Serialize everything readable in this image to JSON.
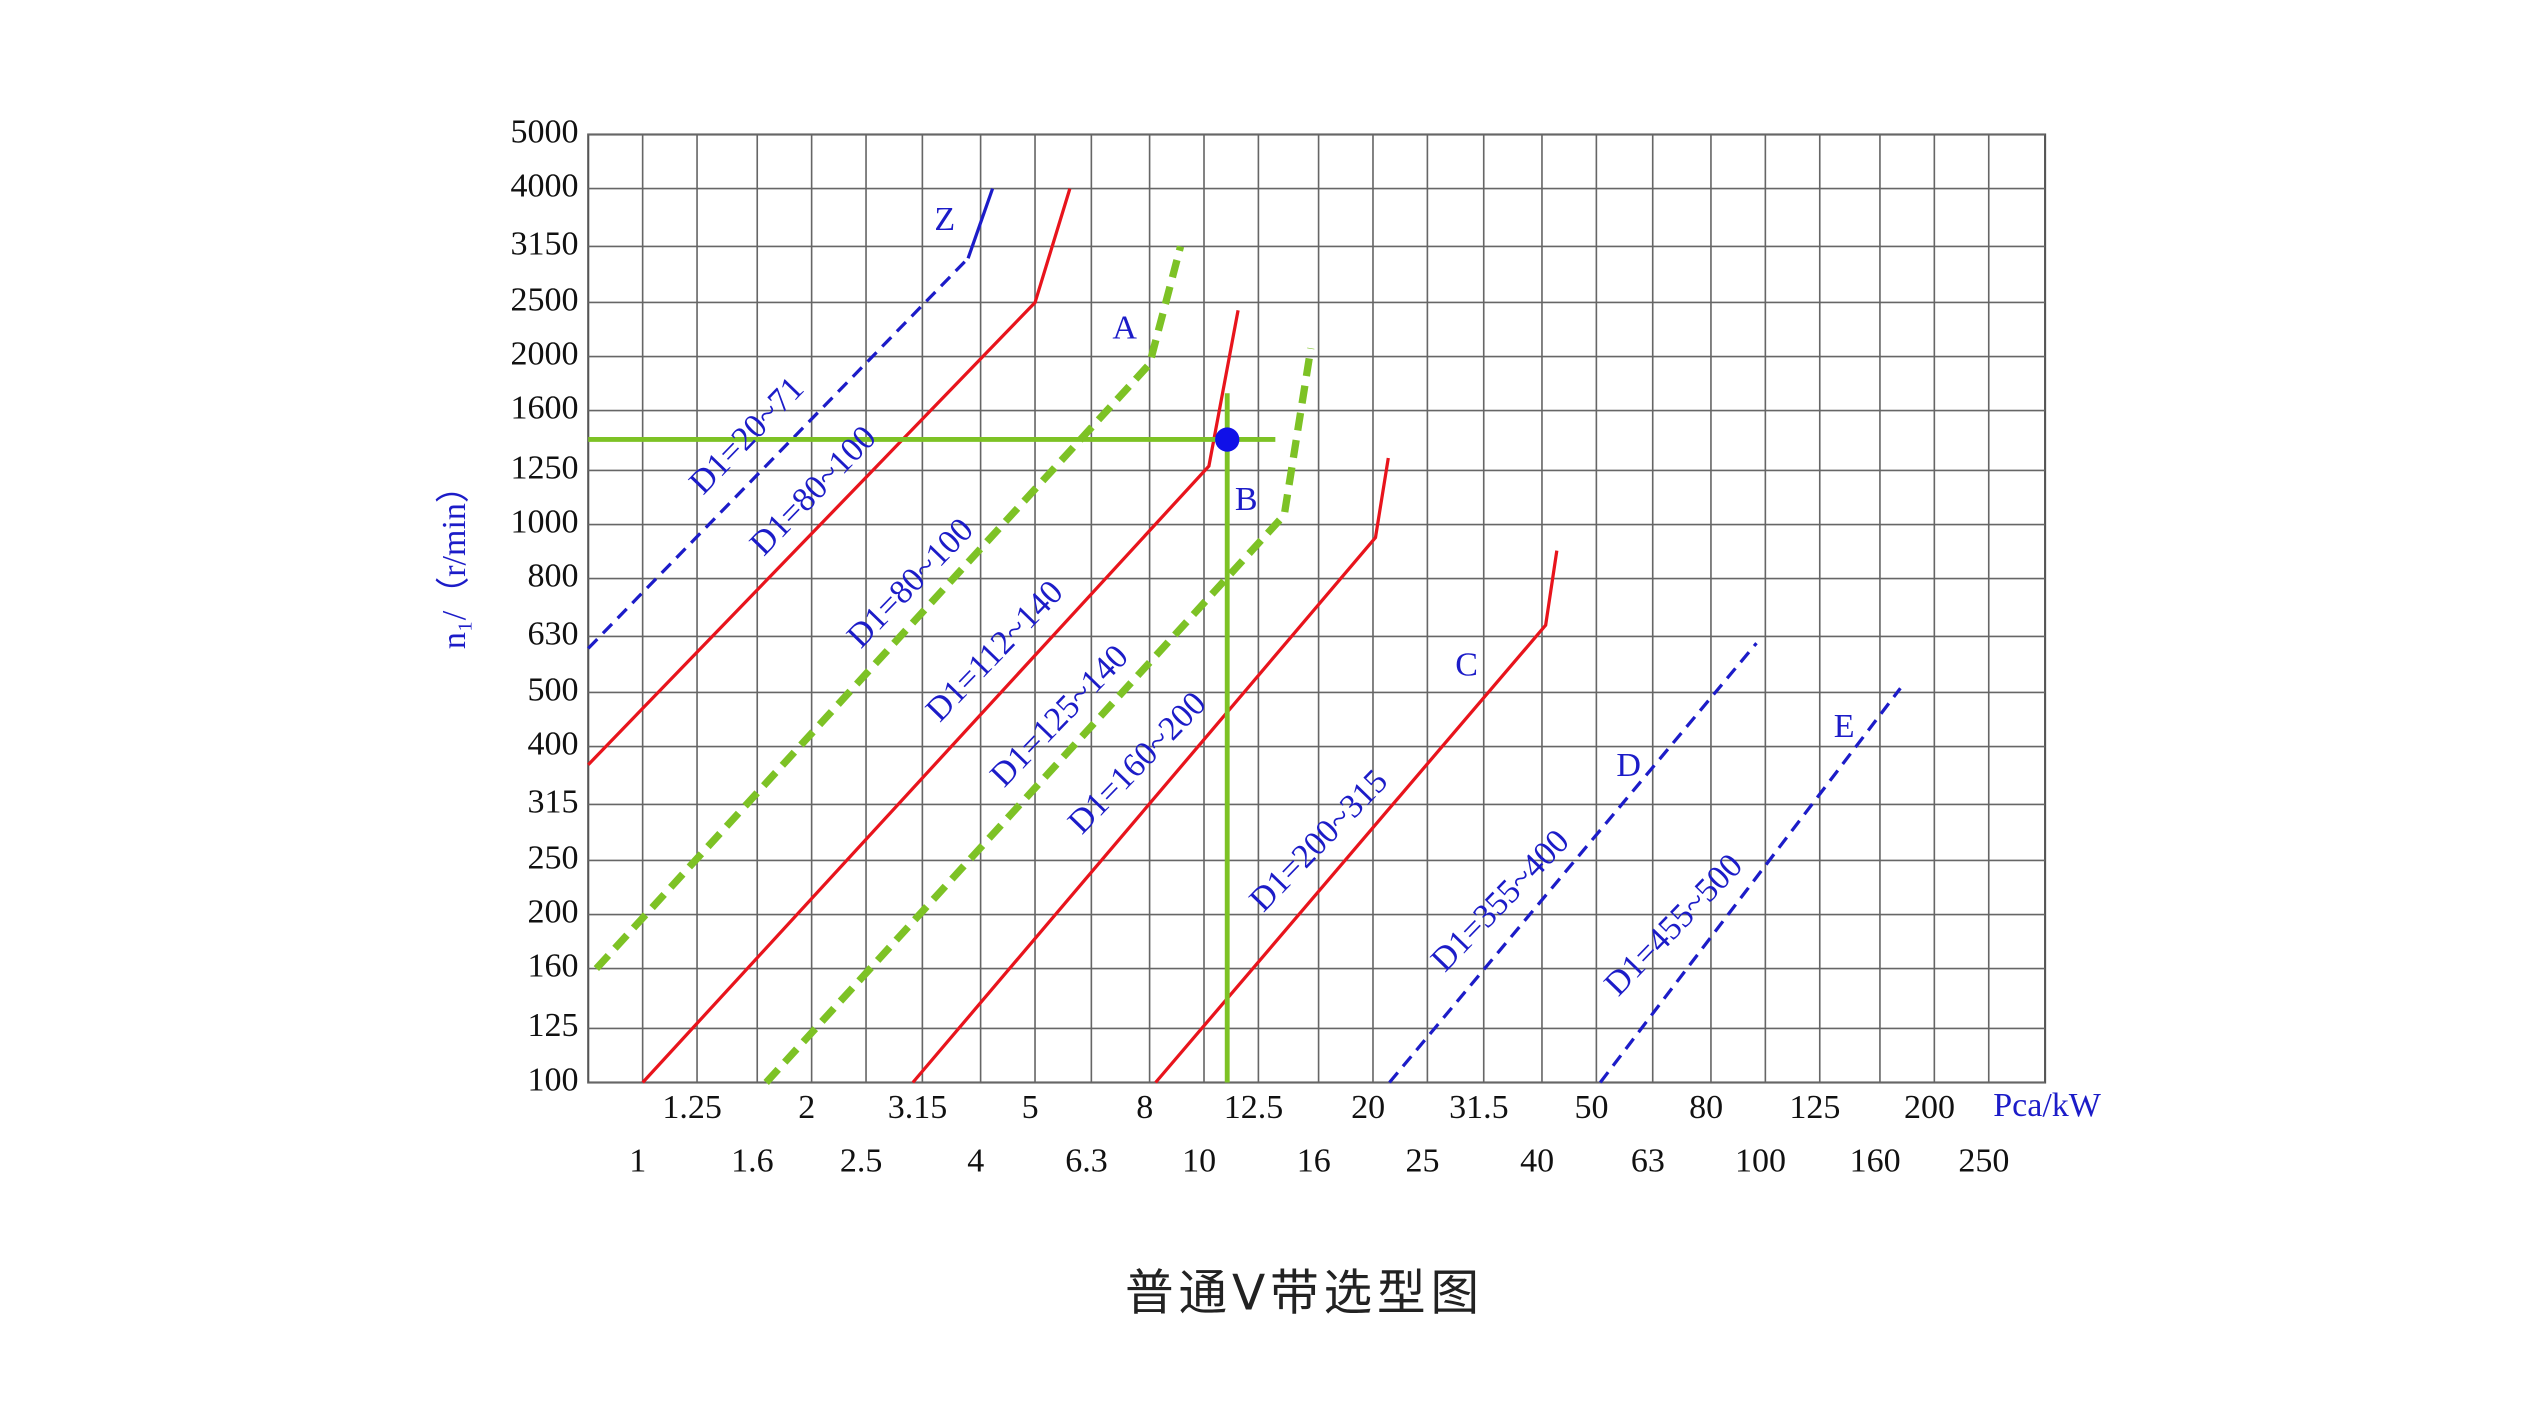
{
  "chart_data": {
    "type": "line",
    "title": "普通V带选型图",
    "y_label": "n₁/（r/min）",
    "x_label": "Pca/kW",
    "log_x": true,
    "log_y": true,
    "grid": true,
    "xlim": [
      0.8,
      315
    ],
    "ylim": [
      100,
      5000
    ],
    "xticks": [
      1,
      1.25,
      1.6,
      2,
      2.5,
      3.15,
      4,
      5,
      6.3,
      8,
      10,
      12.5,
      16,
      20,
      25,
      31.5,
      40,
      50,
      63,
      80,
      100,
      125,
      160,
      200,
      250
    ],
    "yticks": [
      100,
      125,
      160,
      200,
      250,
      315,
      400,
      500,
      630,
      800,
      1000,
      1250,
      1600,
      2000,
      2500,
      3150,
      4000,
      5000
    ],
    "series": [
      {
        "color": "#1c1cc8",
        "dash": true,
        "width": 2,
        "x": [
          0.8,
          3.8
        ],
        "values": [
          600,
          3000
        ]
      },
      {
        "color": "#1c1cc8",
        "dash": false,
        "width": 2,
        "x": [
          3.8,
          4.2
        ],
        "values": [
          3000,
          4000
        ]
      },
      {
        "color": "#e8141c",
        "dash": false,
        "width": 2,
        "x": [
          0.8,
          5,
          5.77
        ],
        "values": [
          371,
          2500,
          4000
        ]
      },
      {
        "color": "#7dc225",
        "dash": true,
        "width": 4.5,
        "x": [
          0.827,
          8,
          9.08
        ],
        "values": [
          160,
          1940,
          3150
        ]
      },
      {
        "color": "#e8141c",
        "dash": false,
        "width": 2,
        "x": [
          1,
          10.2,
          11.5
        ],
        "values": [
          100,
          1273,
          2420
        ]
      },
      {
        "color": "#7dc225",
        "dash": true,
        "width": 4.5,
        "x": [
          1.66,
          13.9,
          15.5
        ],
        "values": [
          100,
          1040,
          2070
        ]
      },
      {
        "color": "#e8141c",
        "dash": false,
        "width": 2,
        "x": [
          3.03,
          20.2,
          21.3
        ],
        "values": [
          100,
          948,
          1316
        ]
      },
      {
        "color": "#e8141c",
        "dash": false,
        "width": 2,
        "x": [
          8.2,
          40.6,
          42.5
        ],
        "values": [
          100,
          660,
          898
        ]
      },
      {
        "color": "#1c1cc8",
        "dash": true,
        "width": 2,
        "x": [
          21.4,
          96.4
        ],
        "values": [
          100,
          613
        ]
      },
      {
        "color": "#1c1cc8",
        "dash": true,
        "width": 2,
        "x": [
          50.8,
          174
        ],
        "values": [
          100,
          509
        ]
      },
      {
        "color": "#7dc225",
        "dash": false,
        "width": 3,
        "x": [
          0.8,
          13.4
        ],
        "values": [
          1420,
          1420
        ]
      },
      {
        "color": "#7dc225",
        "dash": false,
        "width": 3,
        "x": [
          11,
          11
        ],
        "values": [
          100,
          1719
        ]
      }
    ],
    "marker": {
      "x": 11,
      "y": 1420,
      "color": "#1010e8"
    },
    "annotations": [
      "Z",
      "A",
      "B",
      "C",
      "D",
      "E",
      "D1=20~71",
      "D1=80~100",
      "D1=80~100",
      "D1=112~140",
      "D1=125~140",
      "D1=160~200",
      "D1=200~315",
      "D1=355~400",
      "D1=455~500"
    ]
  }
}
